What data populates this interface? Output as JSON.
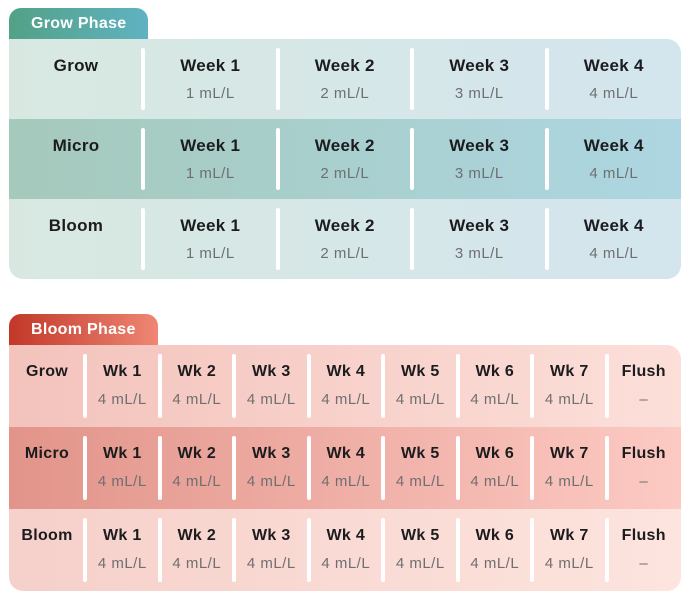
{
  "colors": {
    "page-bg": "#ffffff",
    "tab-text": "#ffffff",
    "title-text": "#1c1c1e",
    "value-text": "#6f6f71",
    "grow-tab-a": "#52a187",
    "grow-tab-b": "#60b2c1",
    "grow-row-light-a": "#d8e8e1",
    "grow-row-light-b": "#d3e6ee",
    "grow-row-dark-a": "#a5c9bb",
    "grow-row-dark-b": "#add6e2",
    "bloom-tab-a": "#c23728",
    "bloom-tab-b": "#ee8774",
    "bloom-row-light-a": "#f3c3bc",
    "bloom-row-light-b": "#fcdfd9",
    "bloom-row-dark-a": "#e2948a",
    "bloom-row-dark-b": "#fccac3",
    "bloom-row-lighter-a": "#f6d0ca",
    "bloom-row-lighter-b": "#fde4de"
  },
  "grow_phase": {
    "tab_label": "Grow Phase",
    "rows": [
      {
        "label": "Grow",
        "cells": [
          {
            "title": "Week 1",
            "value": "1 mL/L"
          },
          {
            "title": "Week 2",
            "value": "2 mL/L"
          },
          {
            "title": "Week 3",
            "value": "3 mL/L"
          },
          {
            "title": "Week 4",
            "value": "4 mL/L"
          }
        ]
      },
      {
        "label": "Micro",
        "cells": [
          {
            "title": "Week 1",
            "value": "1 mL/L"
          },
          {
            "title": "Week 2",
            "value": "2 mL/L"
          },
          {
            "title": "Week 3",
            "value": "3 mL/L"
          },
          {
            "title": "Week 4",
            "value": "4 mL/L"
          }
        ]
      },
      {
        "label": "Bloom",
        "cells": [
          {
            "title": "Week 1",
            "value": "1 mL/L"
          },
          {
            "title": "Week 2",
            "value": "2 mL/L"
          },
          {
            "title": "Week 3",
            "value": "3 mL/L"
          },
          {
            "title": "Week 4",
            "value": "4 mL/L"
          }
        ]
      }
    ]
  },
  "bloom_phase": {
    "tab_label": "Bloom Phase",
    "rows": [
      {
        "label": "Grow",
        "cells": [
          {
            "title": "Wk 1",
            "value": "4 mL/L"
          },
          {
            "title": "Wk 2",
            "value": "4 mL/L"
          },
          {
            "title": "Wk 3",
            "value": "4 mL/L"
          },
          {
            "title": "Wk 4",
            "value": "4 mL/L"
          },
          {
            "title": "Wk 5",
            "value": "4 mL/L"
          },
          {
            "title": "Wk 6",
            "value": "4 mL/L"
          },
          {
            "title": "Wk 7",
            "value": "4 mL/L"
          },
          {
            "title": "Flush",
            "value": "–"
          }
        ]
      },
      {
        "label": "Micro",
        "cells": [
          {
            "title": "Wk 1",
            "value": "4 mL/L"
          },
          {
            "title": "Wk 2",
            "value": "4 mL/L"
          },
          {
            "title": "Wk 3",
            "value": "4 mL/L"
          },
          {
            "title": "Wk 4",
            "value": "4 mL/L"
          },
          {
            "title": "Wk 5",
            "value": "4 mL/L"
          },
          {
            "title": "Wk 6",
            "value": "4 mL/L"
          },
          {
            "title": "Wk 7",
            "value": "4 mL/L"
          },
          {
            "title": "Flush",
            "value": "–"
          }
        ]
      },
      {
        "label": "Bloom",
        "cells": [
          {
            "title": "Wk 1",
            "value": "4 mL/L"
          },
          {
            "title": "Wk 2",
            "value": "4 mL/L"
          },
          {
            "title": "Wk 3",
            "value": "4 mL/L"
          },
          {
            "title": "Wk 4",
            "value": "4 mL/L"
          },
          {
            "title": "Wk 5",
            "value": "4 mL/L"
          },
          {
            "title": "Wk 6",
            "value": "4 mL/L"
          },
          {
            "title": "Wk 7",
            "value": "4 mL/L"
          },
          {
            "title": "Flush",
            "value": "–"
          }
        ]
      }
    ]
  },
  "chart_data": [
    {
      "type": "table",
      "title": "Grow Phase",
      "row_headers": [
        "Grow",
        "Micro",
        "Bloom"
      ],
      "columns": [
        "Week 1",
        "Week 2",
        "Week 3",
        "Week 4"
      ],
      "unit": "mL/L",
      "values_mL_per_L": [
        [
          1,
          2,
          3,
          4
        ],
        [
          1,
          2,
          3,
          4
        ],
        [
          1,
          2,
          3,
          4
        ]
      ]
    },
    {
      "type": "table",
      "title": "Bloom Phase",
      "row_headers": [
        "Grow",
        "Micro",
        "Bloom"
      ],
      "columns": [
        "Wk 1",
        "Wk 2",
        "Wk 3",
        "Wk 4",
        "Wk 5",
        "Wk 6",
        "Wk 7",
        "Flush"
      ],
      "unit": "mL/L",
      "values_mL_per_L": [
        [
          4,
          4,
          4,
          4,
          4,
          4,
          4,
          null
        ],
        [
          4,
          4,
          4,
          4,
          4,
          4,
          4,
          null
        ],
        [
          4,
          4,
          4,
          4,
          4,
          4,
          4,
          null
        ]
      ]
    }
  ]
}
